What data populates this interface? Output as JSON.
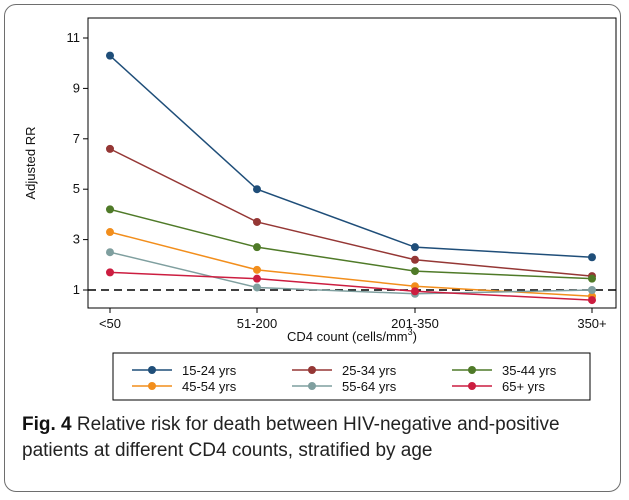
{
  "chart_data": {
    "type": "line",
    "categories": [
      "<50",
      "51-200",
      "201-350",
      "350+"
    ],
    "series": [
      {
        "name": "15-24 yrs",
        "color": "#1f4e79",
        "values": [
          10.3,
          5.0,
          2.7,
          2.3
        ]
      },
      {
        "name": "25-34 yrs",
        "color": "#953735",
        "values": [
          6.6,
          3.7,
          2.2,
          1.55
        ]
      },
      {
        "name": "35-44 yrs",
        "color": "#4f7a28",
        "values": [
          4.2,
          2.7,
          1.75,
          1.45
        ]
      },
      {
        "name": "45-54 yrs",
        "color": "#f28e1c",
        "values": [
          3.3,
          1.8,
          1.15,
          0.75
        ]
      },
      {
        "name": "55-64 yrs",
        "color": "#7f9f9f",
        "values": [
          2.5,
          1.1,
          0.85,
          1.0
        ]
      },
      {
        "name": "65+ yrs",
        "color": "#cc1d40",
        "values": [
          1.7,
          1.45,
          0.95,
          0.6
        ]
      }
    ],
    "reference_line": {
      "y": 1,
      "style": "dashed"
    },
    "ylabel": "Adjusted RR",
    "xlabel_main": "CD4 count (cells/mm",
    "xlabel_sup": "3",
    "xlabel_end": ")",
    "yticks": [
      1,
      3,
      5,
      7,
      9,
      11
    ],
    "ylim": [
      0.1,
      11.3
    ],
    "grid": false,
    "legend_placement": "bottom"
  },
  "caption": {
    "label": "Fig. 4",
    "text": " Relative risk for death between HIV-negative and-positive patients at different CD4 counts, stratified by age"
  }
}
